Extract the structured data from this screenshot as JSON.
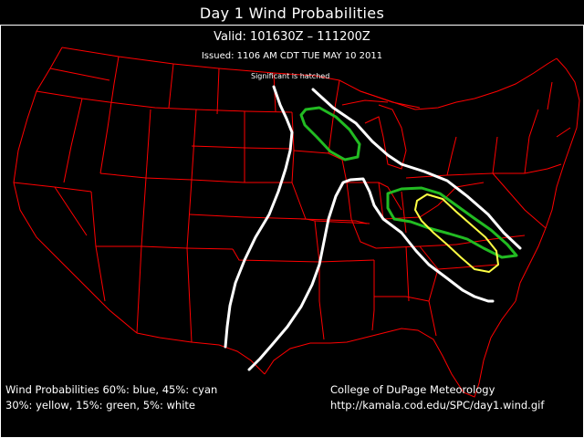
{
  "header": {
    "title": "Day 1 Wind Probabilities",
    "valid": "Valid: 101630Z – 111200Z",
    "issued": "Issued: 1106 AM CDT TUE MAY 10 2011",
    "significant_note": "Significant is hatched"
  },
  "legend": {
    "line1": "Wind Probabilities 60%: blue, 45%: cyan",
    "line2": "30%: yellow, 15%: green, 5%: white"
  },
  "credit": {
    "org": "College of DuPage Meteorology",
    "url": "http://kamala.cod.edu/SPC/day1.wind.gif"
  },
  "colors": {
    "background": "#000000",
    "borders": "#ff0000",
    "p5": "#ffffff",
    "p15": "#00cc00",
    "p30": "#ffff44",
    "p45": "#00ffff",
    "p60": "#0000ff"
  },
  "probability_areas": [
    {
      "level": "5%",
      "color_key": "p5",
      "region": "western Great Plains line"
    },
    {
      "level": "5%",
      "color_key": "p5",
      "region": "Great Lakes to Mid-Atlantic line"
    },
    {
      "level": "5%",
      "color_key": "p5",
      "region": "Texas to Ozarks to Ohio Valley to Southeast"
    },
    {
      "level": "15%",
      "color_key": "p15",
      "region": "Upper Midwest / Minnesota"
    },
    {
      "level": "15%",
      "color_key": "p15",
      "region": "Ohio Valley to Carolinas"
    },
    {
      "level": "30%",
      "color_key": "p30",
      "region": "Virginia / Carolinas"
    }
  ]
}
